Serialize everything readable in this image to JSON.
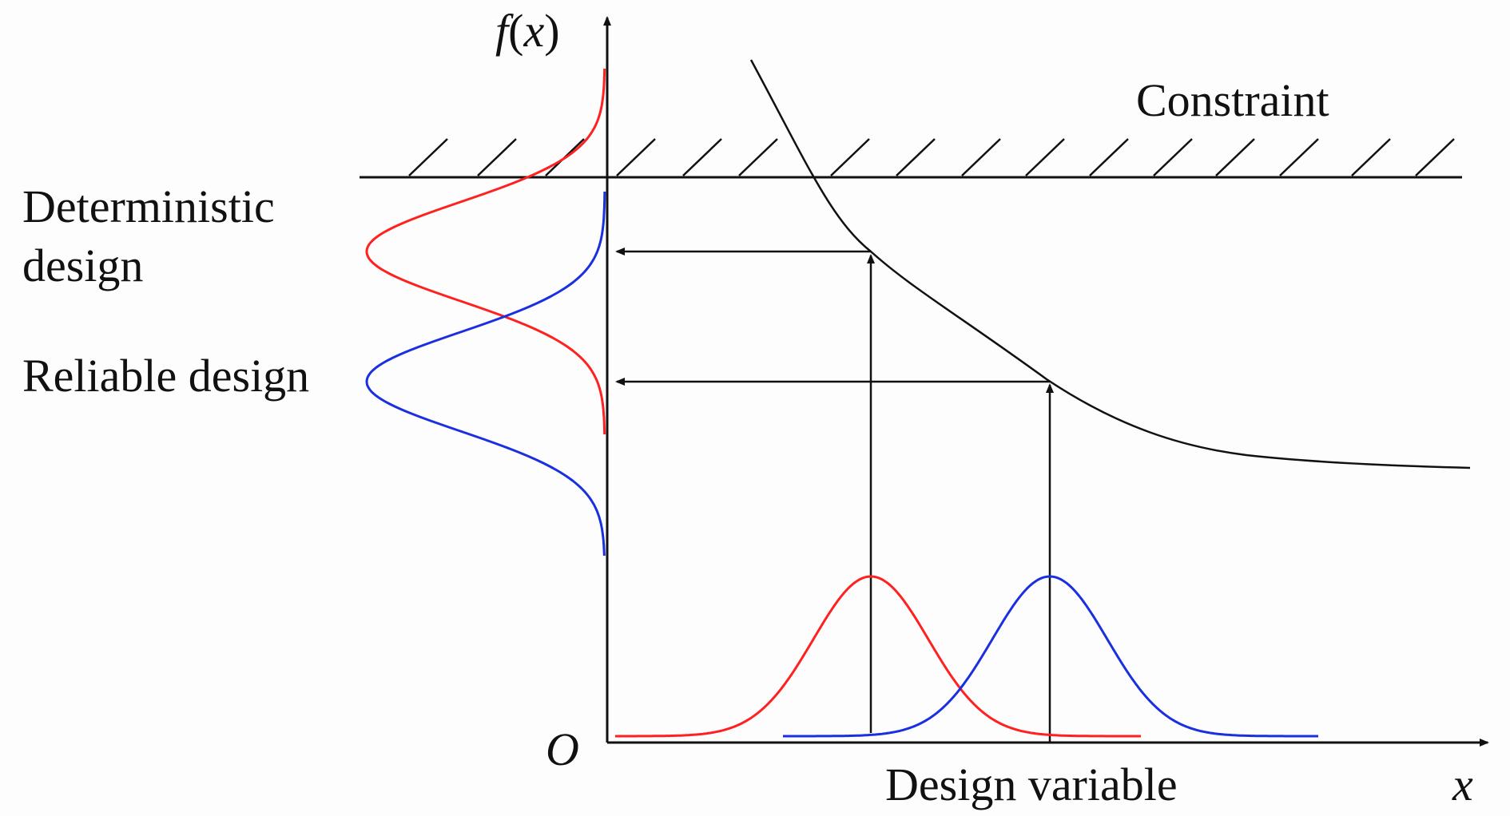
{
  "labels": {
    "y_axis_f": "f",
    "y_axis_paren_open": "(",
    "y_axis_x": "x",
    "y_axis_paren_close": ")",
    "x_axis": "x",
    "origin": "O",
    "constraint": "Constraint",
    "deterministic_line1": "Deterministic",
    "deterministic_line2": "design",
    "reliable": "Reliable design",
    "design_variable": "Design variable"
  },
  "colors": {
    "deterministic": "#ff2020",
    "reliable": "#1a2fe0",
    "ink": "#111111"
  }
}
